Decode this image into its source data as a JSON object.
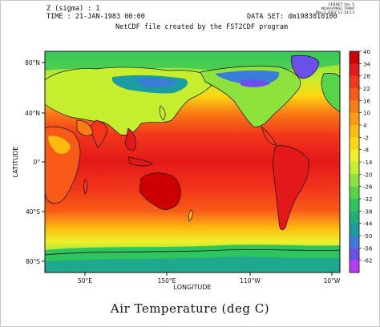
{
  "header": {
    "line1": "Z (sigma) : 1",
    "line2": "TIME : 21-JAN-1983 00:00",
    "dataset": "DATA SET: dm1983010100",
    "subtitle": "NetCDF file created by the FST2CDF program"
  },
  "ferret_stamp": [
    "FERRET Ver. 5",
    "NOAA/PMEL TMAP",
    "Mar 2 2007 11:14:13"
  ],
  "caption": "Air Temperature (deg C)",
  "chart_data": {
    "type": "heatmap",
    "title": "",
    "xlabel": "LONGITUDE",
    "ylabel": "LATITUDE",
    "x_ticks": [
      "50°E",
      "150°E",
      "110°W",
      "10°W"
    ],
    "y_ticks": [
      "80°N",
      "40°N",
      "0°",
      "40°S",
      "80°S"
    ],
    "colorbar": {
      "ticks": [
        40,
        34,
        28,
        22,
        16,
        10,
        4,
        -2,
        -8,
        -14,
        -20,
        -26,
        -32,
        -38,
        -44,
        -50,
        -56,
        -62
      ],
      "labels": [
        "40",
        "34",
        "28",
        "22",
        "16",
        "10",
        "4",
        "-2",
        "-8",
        "-14",
        "-20",
        "-26",
        "-32",
        "-38",
        "-44",
        "-50",
        "-56",
        "-62"
      ],
      "colors": [
        "#cc0000",
        "#e3181a",
        "#f2361a",
        "#f85a18",
        "#fa7c14",
        "#fc9c12",
        "#fdbb10",
        "#fcd812",
        "#eef02a",
        "#c4ee2e",
        "#8ee23c",
        "#58d44a",
        "#2ec45e",
        "#1eb07c",
        "#1a9ca0",
        "#3a7cd8",
        "#6a50e8",
        "#b63cf4"
      ]
    },
    "units": "deg C",
    "grid": false
  }
}
